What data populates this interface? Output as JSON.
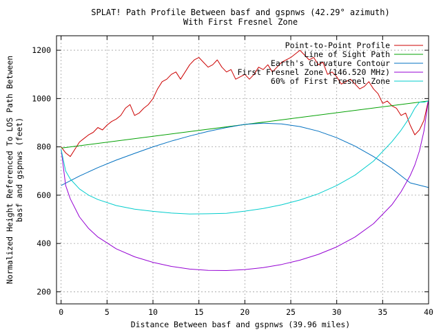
{
  "chart_data": {
    "type": "line",
    "title_lines": [
      "SPLAT! Path Profile Between basf and gspnws (42.29° azimuth)",
      "With First Fresnel Zone"
    ],
    "xlabel": "Distance Between basf and gspnws (39.96 miles)",
    "ylabel_lines": [
      "Normalized Height Referenced To LOS Path Between",
      "basf and gspnws (feet)"
    ],
    "xlim": [
      -0.5,
      40
    ],
    "ylim": [
      150,
      1260
    ],
    "x_ticks": [
      0,
      5,
      10,
      15,
      20,
      25,
      30,
      35,
      40
    ],
    "y_ticks": [
      200,
      400,
      600,
      800,
      1000,
      1200
    ],
    "grid": true,
    "legend_position": "top-right",
    "colors": {
      "profile": "#cc0000",
      "los": "#00a000",
      "curvature": "#0070c0",
      "fresnel": "#9400d3",
      "fresnel60": "#00cccc"
    },
    "series": [
      {
        "key": "profile",
        "name": "Point-to-Point Profile",
        "x": [
          0,
          0.5,
          1,
          1.5,
          2,
          2.5,
          3,
          3.5,
          4,
          4.5,
          5,
          5.5,
          6,
          6.5,
          7,
          7.5,
          8,
          8.5,
          9,
          9.5,
          10,
          10.5,
          11,
          11.5,
          12,
          12.5,
          13,
          13.5,
          14,
          14.5,
          15,
          15.5,
          16,
          16.5,
          17,
          17.5,
          18,
          18.5,
          19,
          19.5,
          20,
          20.5,
          21,
          21.5,
          22,
          22.5,
          23,
          23.5,
          24,
          24.5,
          25,
          25.5,
          26,
          26.5,
          27,
          27.5,
          28,
          28.5,
          29,
          29.5,
          30,
          30.5,
          31,
          31.5,
          32,
          32.5,
          33,
          33.5,
          34,
          34.5,
          35,
          35.5,
          36,
          36.5,
          37,
          37.5,
          38,
          38.5,
          39,
          39.5,
          39.96
        ],
        "y": [
          800,
          775,
          760,
          790,
          820,
          835,
          850,
          860,
          880,
          870,
          890,
          905,
          915,
          930,
          960,
          975,
          930,
          940,
          960,
          975,
          1000,
          1040,
          1070,
          1080,
          1100,
          1110,
          1080,
          1110,
          1140,
          1160,
          1170,
          1150,
          1130,
          1140,
          1160,
          1130,
          1110,
          1120,
          1080,
          1090,
          1100,
          1080,
          1100,
          1130,
          1120,
          1140,
          1110,
          1130,
          1150,
          1160,
          1170,
          1185,
          1200,
          1180,
          1160,
          1170,
          1140,
          1150,
          1100,
          1110,
          1090,
          1060,
          1070,
          1080,
          1060,
          1040,
          1050,
          1070,
          1040,
          1020,
          980,
          990,
          970,
          960,
          930,
          940,
          890,
          850,
          870,
          910,
          990
        ]
      },
      {
        "key": "los",
        "name": "Line of Sight Path",
        "x": [
          0,
          39.96
        ],
        "y": [
          795,
          990
        ]
      },
      {
        "key": "curvature",
        "name": "Earth's Curvature Contour",
        "x": [
          0,
          2,
          4,
          6,
          8,
          10,
          12,
          14,
          16,
          18,
          20,
          22,
          24,
          26,
          28,
          30,
          32,
          34,
          36,
          38,
          39.96
        ],
        "y": [
          640,
          679,
          714,
          745,
          773,
          800,
          824,
          845,
          864,
          880,
          893,
          898,
          895,
          884,
          865,
          838,
          803,
          760,
          710,
          651,
          632
        ]
      },
      {
        "key": "fresnel",
        "name": "First Fresnel Zone (146.520 MHz)",
        "x": [
          0,
          0.5,
          1,
          2,
          3,
          4,
          6,
          8,
          10,
          12,
          14,
          16,
          18,
          20,
          22,
          24,
          26,
          28,
          30,
          32,
          34,
          36,
          37,
          38,
          38.5,
          39,
          39.5,
          39.96
        ],
        "y": [
          790,
          640,
          585,
          510,
          462,
          427,
          378,
          345,
          322,
          305,
          294,
          289,
          288,
          292,
          300,
          313,
          331,
          355,
          386,
          427,
          482,
          560,
          614,
          681,
          725,
          783,
          866,
          990
        ]
      },
      {
        "key": "fresnel60",
        "name": "60% of First Fresnel Zone",
        "x": [
          0,
          0.5,
          1,
          2,
          3,
          4,
          6,
          8,
          10,
          12,
          14,
          16,
          18,
          20,
          22,
          24,
          26,
          28,
          30,
          32,
          34,
          36,
          37,
          38,
          38.5,
          39,
          39.5,
          39.96
        ],
        "y": [
          790,
          700,
          667,
          626,
          600,
          582,
          557,
          542,
          533,
          526,
          522,
          523,
          525,
          534,
          545,
          560,
          580,
          606,
          640,
          683,
          741,
          821,
          869,
          925,
          960,
          985,
          985,
          990
        ]
      }
    ]
  }
}
